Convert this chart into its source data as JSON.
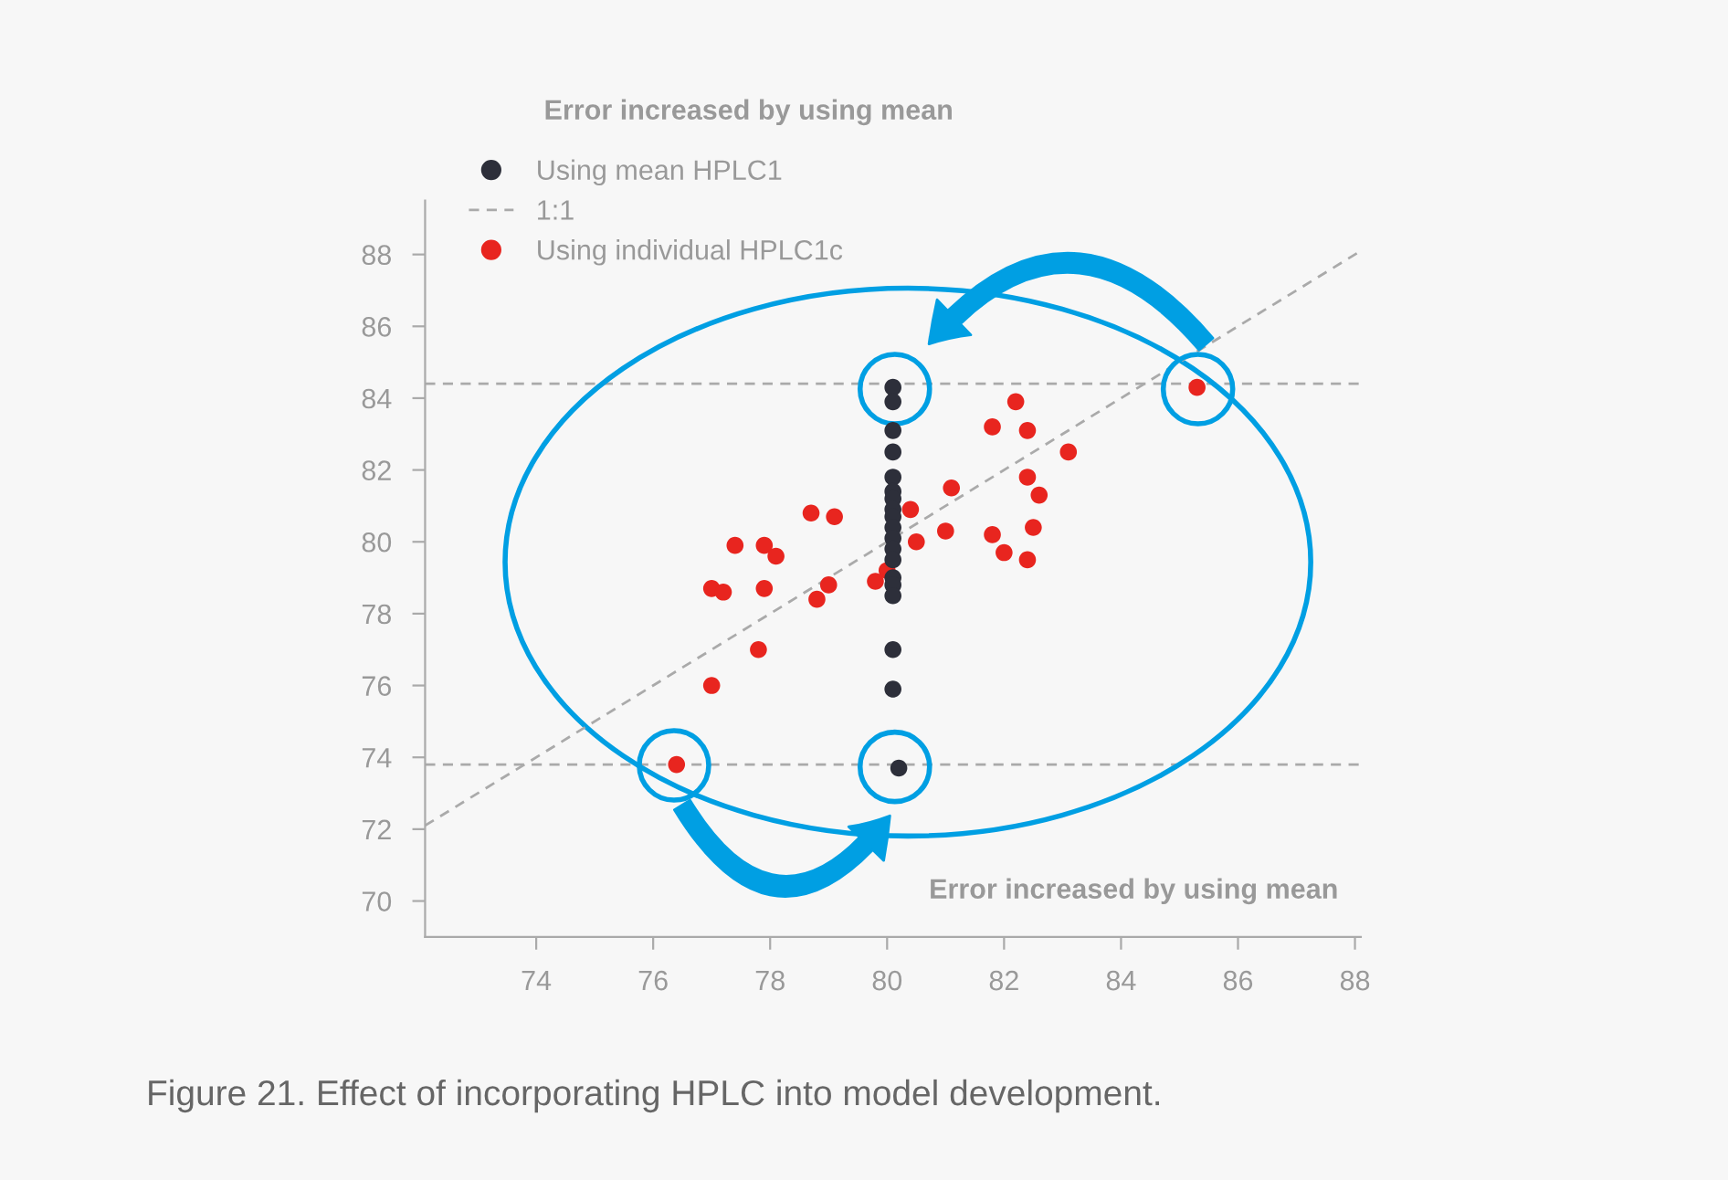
{
  "chart_data": {
    "type": "scatter",
    "xlim": [
      72.1,
      88.1
    ],
    "ylim": [
      69,
      89.5
    ],
    "xticks": [
      74,
      76,
      78,
      80,
      82,
      84,
      86,
      88
    ],
    "yticks": [
      70,
      72,
      74,
      76,
      78,
      80,
      82,
      84,
      86,
      88
    ],
    "marker": "circle",
    "legend": "top left",
    "grid": false,
    "series": [
      {
        "name": "Using mean HPLC1",
        "color": "#2d2f3a",
        "x": [
          80.1,
          80.1,
          80.1,
          80.1,
          80.1,
          80.1,
          80.1,
          80.1,
          80.1,
          80.1,
          80.1,
          80.1,
          80.1,
          80.1,
          80.1,
          80.1,
          80.1,
          80.1,
          80.2
        ],
        "values": [
          84.3,
          83.9,
          83.1,
          82.5,
          81.8,
          81.4,
          81.2,
          80.9,
          80.7,
          80.4,
          80.1,
          79.8,
          79.5,
          79.0,
          78.8,
          78.5,
          77.0,
          75.9,
          73.7
        ]
      },
      {
        "name": "1:1",
        "type": "line",
        "color": "#aaaaaa",
        "line_style": "dashed",
        "marker": "none",
        "x": [
          72.1,
          88.1
        ],
        "values": [
          72.1,
          88.1
        ]
      },
      {
        "name": "Using individual HPLC1c",
        "color": "#e8251f",
        "x": [
          82.2,
          81.8,
          82.4,
          83.1,
          82.4,
          82.6,
          81.1,
          80.4,
          78.7,
          79.1,
          81.0,
          81.8,
          82.5,
          80.5,
          77.4,
          77.9,
          78.1,
          82.0,
          82.4,
          80.0,
          79.8,
          77.0,
          77.2,
          77.9,
          79.0,
          78.8,
          77.8,
          77.0,
          76.4,
          85.3
        ],
        "values": [
          83.9,
          83.2,
          83.1,
          82.5,
          81.8,
          81.3,
          81.5,
          80.9,
          80.8,
          80.7,
          80.3,
          80.2,
          80.4,
          80.0,
          79.9,
          79.9,
          79.6,
          79.7,
          79.5,
          79.2,
          78.9,
          78.7,
          78.6,
          78.7,
          78.8,
          78.4,
          77.0,
          76.0,
          73.8,
          84.3
        ]
      }
    ],
    "ref_lines": [
      {
        "axis": "y",
        "value": 84.4,
        "color": "#aaaaaa",
        "line_style": "dashed"
      },
      {
        "axis": "y",
        "value": 73.8,
        "color": "#aaaaaa",
        "line_style": "dashed"
      }
    ],
    "annotations": [
      "Error increased by using mean",
      "Error increased by using mean",
      "Figure 21. Effect of incorporating HPLC into model development."
    ]
  }
}
